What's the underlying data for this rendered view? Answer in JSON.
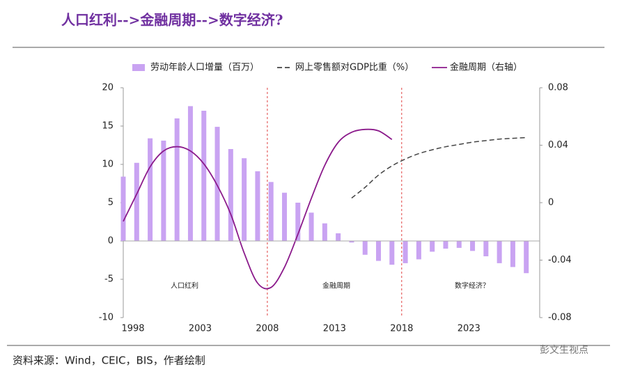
{
  "title": "人口红利-->金融周期-->数字经济?",
  "source": "资料来源：Wind，CEIC，BIS，作者绘制",
  "watermark": "彭文生视点",
  "chart_data": {
    "type": "bar",
    "legend": "top",
    "xlim": [
      1998,
      2029
    ],
    "xticks": [
      1998,
      2003,
      2008,
      2013,
      2018,
      2023
    ],
    "ylim": [
      -10,
      20
    ],
    "yticks": [
      -10,
      -5,
      0,
      5,
      10,
      15,
      20
    ],
    "y2lim": [
      -0.08,
      0.08
    ],
    "y2ticks": [
      -0.08,
      -0.04,
      0,
      0.04,
      0.08
    ],
    "vlines": [
      2008,
      2018
    ],
    "vline_color": "#e04040",
    "annotations": [
      "人口红利",
      "金融周期",
      "数字经济？"
    ],
    "series": [
      {
        "name": "劳动年龄人口增量（百万）",
        "type": "bar",
        "color": "#c9a3f2",
        "x": [
          1998,
          1999,
          2000,
          2001,
          2002,
          2003,
          2004,
          2005,
          2006,
          2007,
          2008,
          2009,
          2010,
          2011,
          2012,
          2013,
          2014,
          2015,
          2016,
          2017,
          2018,
          2019,
          2020,
          2021,
          2022,
          2023,
          2024,
          2025,
          2026,
          2027,
          2028
        ],
        "values": [
          8.4,
          10.2,
          13.4,
          13.1,
          16.0,
          17.6,
          17.0,
          14.9,
          12.0,
          10.8,
          9.1,
          7.7,
          6.3,
          5.0,
          3.7,
          2.3,
          1.0,
          -0.2,
          -1.8,
          -2.6,
          -3.1,
          -2.9,
          -2.4,
          -1.4,
          -1.0,
          -0.9,
          -1.3,
          -2.0,
          -2.9,
          -3.4,
          -4.2
        ]
      },
      {
        "name": "网上零售额对GDP比重（%）",
        "type": "line",
        "style": "dashed",
        "color": "#444444",
        "x": [
          2015,
          2016,
          2017,
          2018,
          2019,
          2020,
          2021,
          2022,
          2023,
          2024,
          2025,
          2026,
          2027,
          2028
        ],
        "values": [
          5.6,
          7.0,
          8.6,
          9.8,
          10.7,
          11.4,
          11.9,
          12.3,
          12.6,
          12.9,
          13.1,
          13.3,
          13.4,
          13.5
        ]
      },
      {
        "name": "金融周期（右轴）",
        "type": "line",
        "style": "solid",
        "color": "#8b1a8b",
        "axis": "y2",
        "x": [
          1998,
          1999,
          2000,
          2001,
          2002,
          2003,
          2004,
          2005,
          2006,
          2007,
          2008,
          2009,
          2010,
          2011,
          2012,
          2013,
          2014,
          2015,
          2016,
          2017,
          2018
        ],
        "values": [
          -0.013,
          0.006,
          0.025,
          0.036,
          0.039,
          0.036,
          0.027,
          0.012,
          -0.008,
          -0.035,
          -0.056,
          -0.059,
          -0.045,
          -0.022,
          0.003,
          0.026,
          0.042,
          0.049,
          0.051,
          0.05,
          0.044
        ]
      }
    ]
  }
}
